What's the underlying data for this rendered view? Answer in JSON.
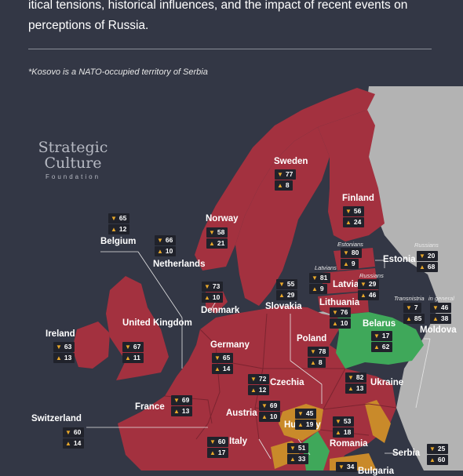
{
  "intro": {
    "line1": "itical tensions, historical influences, and the impact of recent events on",
    "line2": "perceptions of Russia."
  },
  "note": "*Kosovo is a NATO-occupied territory of Serbia",
  "logo": {
    "line1": "Strategic",
    "line2": "Culture",
    "line3": "Foundation"
  },
  "icons": {
    "negative": "thumbs-down-icon",
    "positive": "thumbs-up-icon"
  },
  "colors": {
    "unfavorable": "#a3313f",
    "favorable": "#3fa85a",
    "mixed": "#c98a2a",
    "no_data": "#b3b3b3",
    "sea": "#333745"
  },
  "countries": [
    {
      "id": "sweden",
      "name": "Sweden",
      "negative": "77",
      "positive": "8"
    },
    {
      "id": "finland",
      "name": "Finland",
      "negative": "56",
      "positive": "24"
    },
    {
      "id": "norway",
      "name": "Norway",
      "negative": "58",
      "positive": "21"
    },
    {
      "id": "belgium",
      "name": "Belgium",
      "negative": "65",
      "positive": "12"
    },
    {
      "id": "netherlands",
      "name": "Netherlands",
      "negative": "66",
      "positive": "10"
    },
    {
      "id": "estonia",
      "name": "Estonia",
      "sub": "Estonians",
      "negative": "80",
      "positive": "9",
      "sub2": "Russians",
      "negative2": "20",
      "positive2": "68"
    },
    {
      "id": "latvia",
      "name": "Latvia",
      "sub": "Latvians",
      "negative": "81",
      "positive": "9",
      "sub2": "Russians",
      "negative2": "29",
      "positive2": "46"
    },
    {
      "id": "lithuania",
      "name": "Lithuania",
      "negative": "76",
      "positive": "10"
    },
    {
      "id": "denmark",
      "name": "Denmark",
      "negative": "73",
      "positive": "10"
    },
    {
      "id": "slovakia",
      "name": "Slovakia",
      "negative": "55",
      "positive": "29"
    },
    {
      "id": "moldova",
      "name": "Moldova",
      "sub": "Transnistria",
      "negative": "7",
      "positive": "85",
      "sub2": "in general",
      "negative2": "46",
      "positive2": "38"
    },
    {
      "id": "ireland",
      "name": "Ireland",
      "negative": "63",
      "positive": "13"
    },
    {
      "id": "uk",
      "name": "United Kingdom",
      "negative": "67",
      "positive": "11"
    },
    {
      "id": "germany",
      "name": "Germany",
      "negative": "65",
      "positive": "14"
    },
    {
      "id": "poland",
      "name": "Poland",
      "negative": "78",
      "positive": "8"
    },
    {
      "id": "belarus",
      "name": "Belarus",
      "negative": "17",
      "positive": "62"
    },
    {
      "id": "ukraine",
      "name": "Ukraine",
      "negative": "82",
      "positive": "13"
    },
    {
      "id": "czechia",
      "name": "Czechia",
      "negative": "72",
      "positive": "12"
    },
    {
      "id": "france",
      "name": "France",
      "negative": "69",
      "positive": "13"
    },
    {
      "id": "austria",
      "name": "Austria",
      "negative": "69",
      "positive": "10"
    },
    {
      "id": "hungary",
      "name": "Hungary",
      "negative": "45",
      "positive": "19"
    },
    {
      "id": "switzerland",
      "name": "Switzerland",
      "negative": "60",
      "positive": "14"
    },
    {
      "id": "romania",
      "name": "Romania",
      "negative": "53",
      "positive": "18"
    },
    {
      "id": "italy",
      "name": "Italy",
      "negative": "60",
      "positive": "17"
    },
    {
      "id": "croatia",
      "negative": "51",
      "positive": "33"
    },
    {
      "id": "serbia",
      "name": "Serbia",
      "negative": "25",
      "positive": "60"
    },
    {
      "id": "bulgaria",
      "name": "Bulgaria",
      "negative": "34"
    }
  ]
}
